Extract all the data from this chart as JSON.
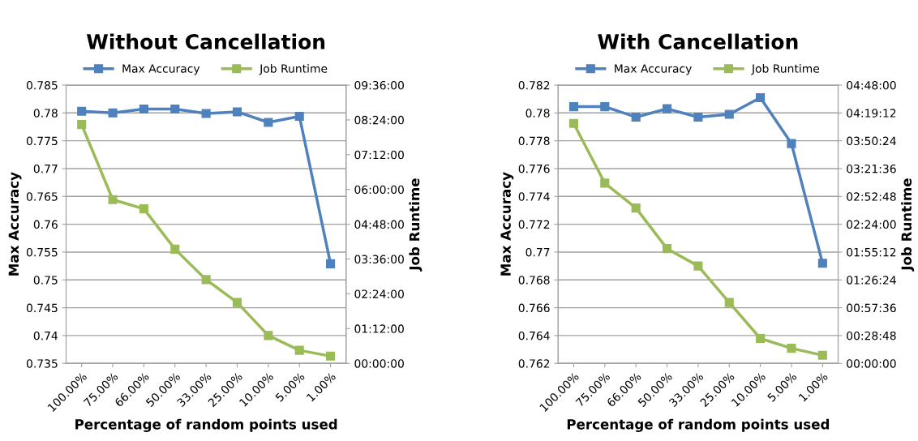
{
  "chart_data": [
    {
      "type": "line",
      "title": "Without Cancellation",
      "xlabel": "Percentage of random points used",
      "ylabel": "Max Accuracy",
      "y2label": "Job Runtime",
      "categories": [
        "100.00%",
        "75.00%",
        "66.00%",
        "50.00%",
        "33.00%",
        "25.00%",
        "10.00%",
        "5.00%",
        "1.00%"
      ],
      "series": [
        {
          "name": "Max Accuracy",
          "color": "#4f81bd",
          "values": [
            0.7803,
            0.78,
            0.7807,
            0.7807,
            0.7799,
            0.7802,
            0.7783,
            0.7794,
            0.7529
          ]
        },
        {
          "name": "Job Runtime",
          "color": "#9bbb59",
          "axis": "y2",
          "values": [
            8.24,
            5.65,
            5.33,
            3.94,
            2.89,
            2.1,
            0.96,
            0.45,
            0.25
          ]
        }
      ],
      "ylim": [
        0.735,
        0.785
      ],
      "yticks": [
        0.735,
        0.74,
        0.745,
        0.75,
        0.755,
        0.76,
        0.765,
        0.77,
        0.775,
        0.78,
        0.785
      ],
      "y2lim": [
        0,
        9.6
      ],
      "y2ticks": [
        {
          "value": 0,
          "label": "00:00:00"
        },
        {
          "value": 1.2,
          "label": "01:12:00"
        },
        {
          "value": 2.4,
          "label": "02:24:00"
        },
        {
          "value": 3.6,
          "label": "03:36:00"
        },
        {
          "value": 4.8,
          "label": "04:48:00"
        },
        {
          "value": 6.0,
          "label": "06:00:00"
        },
        {
          "value": 7.2,
          "label": "07:12:00"
        },
        {
          "value": 8.4,
          "label": "08:24:00"
        },
        {
          "value": 9.6,
          "label": "09:36:00"
        }
      ],
      "grid": "y",
      "legend": "top",
      "marker": "square",
      "line_style": "solid"
    },
    {
      "type": "line",
      "title": "With Cancellation",
      "xlabel": "Percentage of random points used",
      "ylabel": "Max Accuracy",
      "y2label": "Job Runtime",
      "categories": [
        "100.00%",
        "75.00%",
        "66.00%",
        "50.00%",
        "33.00%",
        "25.00%",
        "10.00%",
        "5.00%",
        "1.00%"
      ],
      "series": [
        {
          "name": "Max Accuracy",
          "color": "#4f81bd",
          "values": [
            0.78045,
            0.78045,
            0.7797,
            0.7803,
            0.7797,
            0.7799,
            0.7811,
            0.7778,
            0.7692
          ]
        },
        {
          "name": "Job Runtime",
          "color": "#9bbb59",
          "axis": "y2",
          "values": [
            4.14,
            3.11,
            2.68,
            1.98,
            1.68,
            1.05,
            0.43,
            0.26,
            0.14
          ]
        }
      ],
      "ylim": [
        0.762,
        0.782
      ],
      "yticks": [
        0.762,
        0.764,
        0.766,
        0.768,
        0.77,
        0.772,
        0.774,
        0.776,
        0.778,
        0.78,
        0.782
      ],
      "y2lim": [
        0,
        4.8
      ],
      "y2ticks": [
        {
          "value": 0,
          "label": "00:00:00"
        },
        {
          "value": 0.48,
          "label": "00:28:48"
        },
        {
          "value": 0.96,
          "label": "00:57:36"
        },
        {
          "value": 1.44,
          "label": "01:26:24"
        },
        {
          "value": 1.92,
          "label": "01:55:12"
        },
        {
          "value": 2.4,
          "label": "02:24:00"
        },
        {
          "value": 2.88,
          "label": "02:52:48"
        },
        {
          "value": 3.36,
          "label": "03:21:36"
        },
        {
          "value": 3.84,
          "label": "03:50:24"
        },
        {
          "value": 4.32,
          "label": "04:19:12"
        },
        {
          "value": 4.8,
          "label": "04:48:00"
        }
      ],
      "grid": "y",
      "legend": "top",
      "marker": "square",
      "line_style": "solid"
    }
  ]
}
